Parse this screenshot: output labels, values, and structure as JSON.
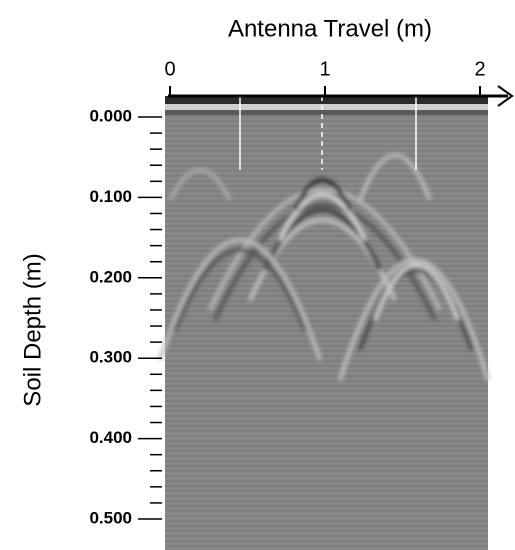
{
  "chart_data": {
    "type": "radargram",
    "xlabel": "Antenna Travel (m)",
    "ylabel": "Soil Depth (m)",
    "xlim": [
      0,
      2
    ],
    "xticks": [
      0,
      1,
      2
    ],
    "ylim": [
      0,
      0.5
    ],
    "yticks": [
      {
        "value": 0,
        "label": "0.000"
      },
      {
        "value": 0.1,
        "label": "0.100"
      },
      {
        "value": 0.2,
        "label": "0.200"
      },
      {
        "value": 0.3,
        "label": "0.300"
      },
      {
        "value": 0.4,
        "label": "0.400"
      },
      {
        "value": 0.5,
        "label": "0.500"
      }
    ],
    "yminorticks": [
      0.02,
      0.04,
      0.06,
      0.08,
      0.12,
      0.14,
      0.16,
      0.18,
      0.22,
      0.24,
      0.26,
      0.28,
      0.32,
      0.34,
      0.36,
      0.38,
      0.42,
      0.44,
      0.46,
      0.48
    ]
  }
}
